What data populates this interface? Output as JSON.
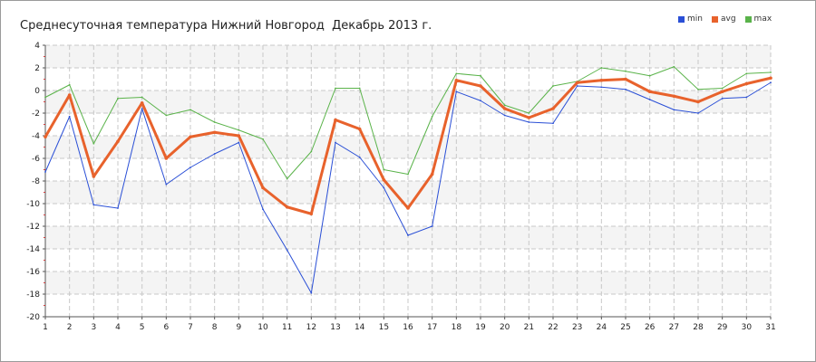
{
  "title": "Среднесуточная температура Нижний Новгород  Декабрь 2013 г.",
  "colors": {
    "min": "#2a4fd6",
    "avg": "#e8622c",
    "max": "#5ab34a",
    "grid": "#c8c8c8",
    "band": "#f4f4f4",
    "axis": "#555555"
  },
  "chart_data": {
    "type": "line",
    "title": "Среднесуточная температура Нижний Новгород  Декабрь 2013 г.",
    "xlabel": "",
    "ylabel": "",
    "x": [
      1,
      2,
      3,
      4,
      5,
      6,
      7,
      8,
      9,
      10,
      11,
      12,
      13,
      14,
      15,
      16,
      17,
      18,
      19,
      20,
      21,
      22,
      23,
      24,
      25,
      26,
      27,
      28,
      29,
      30,
      31
    ],
    "ylim": [
      -20,
      4
    ],
    "yticks": [
      4,
      2,
      0,
      -2,
      -4,
      -6,
      -8,
      -10,
      -12,
      -14,
      -16,
      -18,
      -20
    ],
    "grid": true,
    "legend_position": "top-right",
    "series": [
      {
        "name": "min",
        "values": [
          -7.2,
          -2.3,
          -10.1,
          -10.4,
          -1.6,
          -8.3,
          -6.8,
          -5.6,
          -4.6,
          -10.5,
          -14.1,
          -17.9,
          -4.6,
          -5.9,
          -8.6,
          -12.8,
          -12.0,
          -0.1,
          -0.9,
          -2.2,
          -2.8,
          -2.9,
          0.4,
          0.3,
          0.1,
          -0.8,
          -1.7,
          -2.0,
          -0.7,
          -0.6,
          0.7
        ]
      },
      {
        "name": "avg",
        "values": [
          -4.1,
          -0.4,
          -7.6,
          -4.5,
          -1.1,
          -6.0,
          -4.1,
          -3.7,
          -4.0,
          -8.6,
          -10.3,
          -10.9,
          -2.6,
          -3.4,
          -7.9,
          -10.4,
          -7.4,
          0.9,
          0.4,
          -1.6,
          -2.4,
          -1.6,
          0.7,
          0.9,
          1.0,
          -0.1,
          -0.5,
          -1.0,
          -0.1,
          0.6,
          1.1
        ]
      },
      {
        "name": "max",
        "values": [
          -0.6,
          0.5,
          -4.7,
          -0.7,
          -0.6,
          -2.2,
          -1.7,
          -2.8,
          -3.5,
          -4.3,
          -7.8,
          -5.4,
          0.2,
          0.2,
          -7.0,
          -7.4,
          -2.3,
          1.5,
          1.3,
          -1.3,
          -2.0,
          0.4,
          0.8,
          2.0,
          1.7,
          1.3,
          2.1,
          0.1,
          0.2,
          1.5,
          1.6
        ]
      }
    ]
  }
}
